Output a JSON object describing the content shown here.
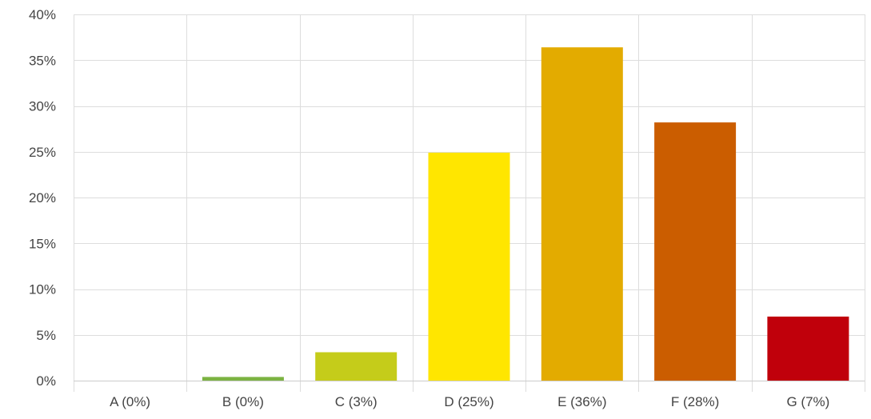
{
  "chart_data": {
    "type": "bar",
    "title": "",
    "xlabel": "",
    "ylabel": "",
    "categories": [
      "A (0%)",
      "B (0%)",
      "C (3%)",
      "D (25%)",
      "E (36%)",
      "F (28%)",
      "G (7%)"
    ],
    "values": [
      0,
      0.4,
      3.1,
      24.9,
      36.4,
      28.2,
      7.0
    ],
    "colors": [
      "#4e8f3a",
      "#7cb342",
      "#c5cc1a",
      "#ffe600",
      "#e3ab00",
      "#cb5d00",
      "#c0000b"
    ],
    "ylim": [
      0,
      40
    ],
    "y_ticks": [
      0,
      5,
      10,
      15,
      20,
      25,
      30,
      35,
      40
    ],
    "y_tick_labels": [
      "0%",
      "5%",
      "10%",
      "15%",
      "20%",
      "25%",
      "30%",
      "35%",
      "40%"
    ],
    "grid": true,
    "legend": "none",
    "gridline_color": "#dddddd",
    "axis_color": "#cccccc",
    "tick_label_color": "#444444"
  }
}
